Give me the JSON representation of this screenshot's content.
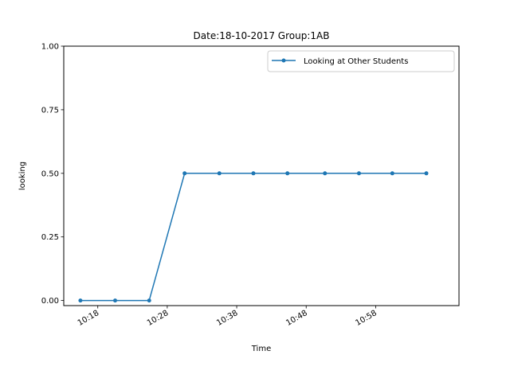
{
  "chart_data": {
    "type": "line",
    "title": "Date:18-10-2017  Group:1AB",
    "xlabel": "Time",
    "ylabel": "looking",
    "x_ticks": [
      "10:18",
      "10:28",
      "10:38",
      "10:48",
      "10:58"
    ],
    "x_tick_minutes": [
      618,
      628,
      638,
      648,
      658
    ],
    "xlim_minutes": [
      613.1,
      670.0
    ],
    "y_ticks": [
      "0.00",
      "0.25",
      "0.50",
      "0.75",
      "1.00"
    ],
    "ylim": [
      -0.02,
      1.0
    ],
    "x": [
      "10:15:30",
      "10:20:30",
      "10:25:30",
      "10:30:30",
      "10:35:30",
      "10:40:30",
      "10:45:30",
      "10:50:30",
      "10:55:30",
      "11:00:30",
      "11:05:30"
    ],
    "x_minutes": [
      615.5,
      620.5,
      625.4,
      630.5,
      635.5,
      640.4,
      645.3,
      650.7,
      655.6,
      660.4,
      665.3
    ],
    "series": [
      {
        "name": "Looking at Other Students",
        "color": "#1f77b4",
        "marker": "circle",
        "values": [
          0.0,
          0.0,
          0.0,
          0.5,
          0.5,
          0.5,
          0.5,
          0.5,
          0.5,
          0.5,
          0.5
        ]
      }
    ],
    "legend_position": "top-right",
    "grid": false
  }
}
